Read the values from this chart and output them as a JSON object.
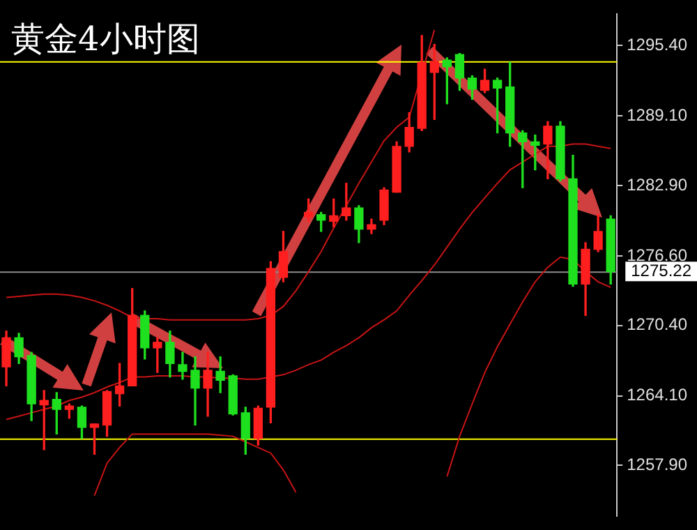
{
  "chart_data": {
    "type": "candlestick",
    "title": "黄金4小时图",
    "categories": [
      null,
      null,
      null,
      null,
      null,
      null,
      null,
      null,
      null,
      null,
      null,
      null,
      null,
      null,
      null,
      null,
      null,
      null,
      null,
      null,
      null,
      null,
      null,
      null,
      null,
      null,
      null,
      null,
      null,
      null,
      null,
      null,
      null,
      null,
      null,
      null,
      null,
      null,
      null,
      null,
      null,
      null,
      null,
      null,
      null,
      null,
      null,
      null,
      null
    ],
    "ohlc": [
      [
        1266.7,
        1269.9,
        1265.0,
        1269.3
      ],
      [
        1269.3,
        1269.7,
        1267.0,
        1267.6
      ],
      [
        1267.7,
        1268.0,
        1261.9,
        1263.4
      ],
      [
        1263.3,
        1264.6,
        1259.3,
        1263.7
      ],
      [
        1263.8,
        1264.4,
        1260.7,
        1262.9
      ],
      [
        1262.9,
        1263.4,
        1262.1,
        1263.2
      ],
      [
        1263.1,
        1263.2,
        1260.3,
        1261.3
      ],
      [
        1261.3,
        1261.6,
        1258.9,
        1261.6
      ],
      [
        1261.5,
        1264.6,
        1260.5,
        1264.5
      ],
      [
        1264.3,
        1267.0,
        1263.2,
        1265.0
      ],
      [
        1265.0,
        1273.7,
        1265.0,
        1271.3
      ],
      [
        1271.3,
        1271.7,
        1267.4,
        1268.4
      ],
      [
        1268.4,
        1269.3,
        1266.2,
        1268.9
      ],
      [
        1268.9,
        1269.9,
        1265.8,
        1267.0
      ],
      [
        1266.9,
        1268.0,
        1265.6,
        1266.3
      ],
      [
        1266.4,
        1267.6,
        1261.5,
        1264.8
      ],
      [
        1264.8,
        1268.0,
        1262.3,
        1266.4
      ],
      [
        1266.3,
        1267.6,
        1264.4,
        1265.5
      ],
      [
        1265.9,
        1266.0,
        1262.4,
        1262.5
      ],
      [
        1262.6,
        1263.1,
        1258.9,
        1260.3
      ],
      [
        1260.3,
        1263.2,
        1259.7,
        1263.0
      ],
      [
        1263.1,
        1276.1,
        1261.7,
        1275.5
      ],
      [
        1274.7,
        1278.8,
        1274.3,
        1277.0
      ],
      null,
      [
        1280.1,
        1281.7,
        1279.7,
        1280.5
      ],
      [
        1280.3,
        1280.5,
        1278.8,
        1279.8
      ],
      [
        1279.7,
        1281.7,
        1279.2,
        1280.2
      ],
      [
        1280.2,
        1283.1,
        1279.8,
        1280.9
      ],
      [
        1280.9,
        1281.1,
        1277.8,
        1279.0
      ],
      [
        1279.0,
        1279.9,
        1278.6,
        1279.4
      ],
      [
        1279.8,
        1282.7,
        1279.4,
        1282.5
      ],
      [
        1282.3,
        1286.8,
        1282.3,
        1286.4
      ],
      [
        1286.4,
        1289.4,
        1285.9,
        1288.1
      ],
      [
        1288.0,
        1296.3,
        1287.8,
        1293.9
      ],
      [
        1293.0,
        1295.5,
        1288.8,
        1294.0
      ],
      [
        1294.1,
        1294.3,
        1290.2,
        1293.5
      ],
      [
        1294.6,
        1294.7,
        1291.4,
        1292.5
      ],
      [
        1292.5,
        1292.7,
        1290.6,
        1291.5
      ],
      [
        1291.4,
        1293.3,
        1291.2,
        1292.3
      ],
      [
        1292.3,
        1292.5,
        1287.6,
        1291.6
      ],
      [
        1291.7,
        1293.9,
        1286.4,
        1287.6
      ],
      [
        1287.6,
        1287.8,
        1282.7,
        1286.8
      ],
      [
        1286.8,
        1287.4,
        1284.3,
        1286.5
      ],
      [
        1286.6,
        1288.6,
        1283.5,
        1288.2
      ],
      [
        1288.2,
        1288.6,
        1283.3,
        1283.5
      ],
      [
        1283.5,
        1285.6,
        1273.9,
        1274.1
      ],
      [
        1274.1,
        1277.8,
        1271.3,
        1277.2
      ],
      [
        1277.2,
        1280.3,
        1277.0,
        1278.8
      ],
      [
        1279.9,
        1280.2,
        1274.1,
        1275.2
      ]
    ],
    "colors": [
      "#ff1f1f",
      "#1fe01f",
      "#1fe01f",
      "#ff1f1f",
      "#1fe01f",
      "#ff1f1f",
      "#1fe01f",
      "#ff1f1f",
      "#ff1f1f",
      "#ff1f1f",
      "#ff1f1f",
      "#1fe01f",
      "#ff1f1f",
      "#1fe01f",
      "#1fe01f",
      "#1fe01f",
      "#ff1f1f",
      "#1fe01f",
      "#1fe01f",
      "#1fe01f",
      "#ff1f1f",
      "#ff1f1f",
      "#ff1f1f",
      null,
      "#ff1f1f",
      "#1fe01f",
      "#ff1f1f",
      "#ff1f1f",
      "#1fe01f",
      "#ff1f1f",
      "#ff1f1f",
      "#ff1f1f",
      "#ff1f1f",
      "#ff1f1f",
      "#ff1f1f",
      "#1fe01f",
      "#1fe01f",
      "#1fe01f",
      "#ff1f1f",
      "#1fe01f",
      "#1fe01f",
      "#1fe01f",
      "#1fe01f",
      "#ff1f1f",
      "#1fe01f",
      "#1fe01f",
      "#ff1f1f",
      "#ff1f1f",
      "#1fe01f"
    ],
    "series": [
      {
        "type": "line",
        "color": "#c81414",
        "values": [
          1272.9,
          1273.0,
          1273.1,
          1273.2,
          1273.2,
          1273.1,
          1272.9,
          1272.6,
          1272.2,
          1271.7,
          1271.1,
          1271.0,
          1271.0,
          1270.9,
          1270.9,
          1270.9,
          1270.9,
          1270.9,
          1270.9,
          1270.9,
          1271.0,
          1271.3,
          1272.1,
          1273.5,
          1275.2,
          1277.0,
          1279.1,
          1281.1,
          1283.1,
          1285.0,
          1286.9,
          1288.1,
          1289.0,
          1292.9,
          1296.8,
          null,
          null,
          null,
          null,
          null,
          null,
          null,
          null,
          null,
          null,
          null,
          null,
          null,
          null
        ]
      },
      {
        "type": "line",
        "color": "#c81414",
        "values": [
          1262.0,
          1262.3,
          1262.6,
          1262.9,
          1263.2,
          1263.7,
          1264.0,
          1264.4,
          1264.9,
          1265.3,
          1265.8,
          1265.8,
          1265.9,
          1265.9,
          1265.9,
          1265.8,
          1265.8,
          1265.7,
          1265.7,
          1265.6,
          1265.6,
          1265.8,
          1266.0,
          1266.4,
          1266.9,
          1267.3,
          1268.0,
          1268.6,
          1269.3,
          1270.2,
          1270.9,
          1271.7,
          1273.1,
          1274.4,
          1275.8,
          1277.4,
          1279.0,
          1280.5,
          1281.8,
          1283.1,
          1284.3,
          1285.0,
          1285.7,
          1286.4,
          1286.4,
          1286.6,
          1286.6,
          1286.4,
          1286.2
        ]
      },
      {
        "type": "line",
        "color": "#c81414",
        "values": [
          null,
          null,
          null,
          null,
          null,
          null,
          null,
          1255.2,
          1258.1,
          1259.5,
          1260.7,
          1260.7,
          1260.7,
          1260.7,
          1260.7,
          1260.7,
          1260.7,
          1260.6,
          1260.5,
          1260.0,
          1259.5,
          1259.0,
          1257.5,
          1255.5,
          null,
          null,
          null,
          null,
          null,
          null,
          null,
          null,
          null,
          null,
          null,
          1256.9,
          1260.5,
          1263.4,
          1266.2,
          1268.5,
          1270.5,
          1272.5,
          1274.3,
          1275.6,
          1276.5,
          1276.3,
          1275.2,
          1274.3,
          1273.8
        ]
      }
    ],
    "ylim": [
      1253.4,
      1298.2
    ],
    "yticks": [
      {
        "value": 1257.9,
        "label": "1257.90"
      },
      {
        "value": 1264.1,
        "label": "1264.10"
      },
      {
        "value": 1270.4,
        "label": "1270.40"
      },
      {
        "value": 1276.6,
        "label": "1276.60"
      },
      {
        "value": 1282.9,
        "label": "1282.90"
      },
      {
        "value": 1289.1,
        "label": "1289.10"
      },
      {
        "value": 1295.4,
        "label": "1295.40"
      }
    ],
    "ref_lines": [
      {
        "axis": "y",
        "value": 1294.0,
        "color": "#ffff00"
      },
      {
        "axis": "y",
        "value": 1260.3,
        "color": "#ffff00"
      },
      {
        "axis": "y",
        "value": 1275.22,
        "label": "1275.22",
        "color": "#8c8c8c"
      }
    ],
    "grid": false,
    "legend": false,
    "marker": "none",
    "tick_labels": "y"
  }
}
